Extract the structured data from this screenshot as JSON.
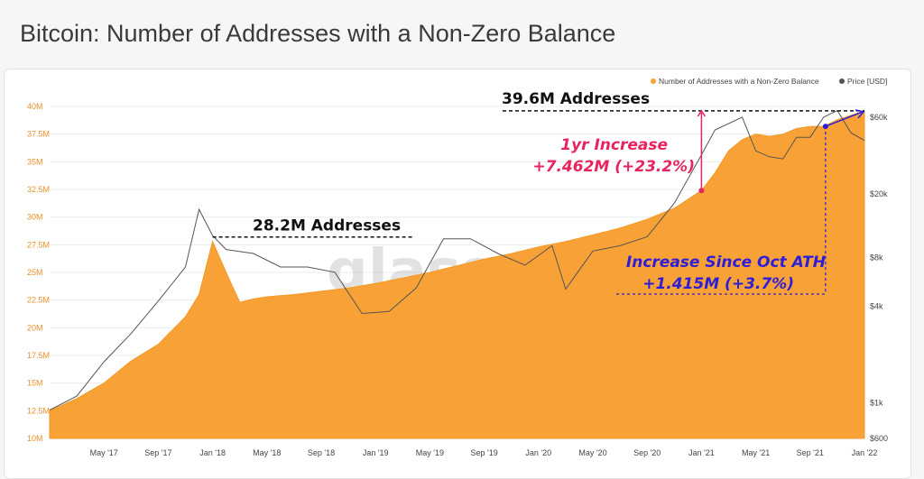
{
  "title": "Bitcoin: Number of Addresses with a Non-Zero Balance",
  "watermark": "glassnode",
  "colors": {
    "addresses": "#f7a136",
    "price": "#555555",
    "pink": "#e8245f",
    "blue": "#2d1ed8",
    "left_axis": "#e8902a"
  },
  "chart_data": {
    "type": "area",
    "legend": [
      {
        "name": "Number of Addresses with a Non-Zero Balance",
        "color": "#f7a136"
      },
      {
        "name": "Price [USD]",
        "color": "#555555"
      }
    ],
    "x_ticks": [
      "May '17",
      "Sep '17",
      "Jan '18",
      "May '18",
      "Sep '18",
      "Jan '19",
      "May '19",
      "Sep '19",
      "Jan '20",
      "May '20",
      "Sep '20",
      "Jan '21",
      "May '21",
      "Sep '21",
      "Jan '22"
    ],
    "y_left_ticks": [
      "10M",
      "12.5M",
      "15M",
      "17.5M",
      "20M",
      "22.5M",
      "25M",
      "27.5M",
      "30M",
      "32.5M",
      "35M",
      "37.5M",
      "40M"
    ],
    "y_left_range": [
      10,
      40
    ],
    "y_right_ticks": [
      "$600",
      "$1k",
      "$4k",
      "$8k",
      "$20k",
      "$60k"
    ],
    "y_right_scale": "log",
    "grid": true,
    "series": [
      {
        "name": "Number of Addresses with a Non-Zero Balance",
        "unit": "M",
        "x": [
          "2017-01",
          "2017-03",
          "2017-05",
          "2017-07",
          "2017-09",
          "2017-11",
          "2017-12",
          "2018-01",
          "2018-02",
          "2018-03",
          "2018-04",
          "2018-05",
          "2018-07",
          "2018-09",
          "2018-11",
          "2019-01",
          "2019-03",
          "2019-05",
          "2019-07",
          "2019-09",
          "2019-11",
          "2020-01",
          "2020-03",
          "2020-05",
          "2020-07",
          "2020-09",
          "2020-11",
          "2021-01",
          "2021-02",
          "2021-03",
          "2021-04",
          "2021-05",
          "2021-06",
          "2021-07",
          "2021-08",
          "2021-09",
          "2021-10",
          "2021-11",
          "2021-12",
          "2022-01"
        ],
        "values": [
          12.5,
          13.6,
          15.0,
          17.0,
          18.5,
          21.0,
          23.0,
          27.8,
          25.0,
          22.3,
          22.6,
          22.8,
          23.0,
          23.3,
          23.6,
          24.0,
          24.5,
          25.0,
          25.6,
          26.2,
          26.7,
          27.3,
          27.8,
          28.4,
          29.0,
          29.8,
          30.8,
          32.4,
          34.0,
          36.0,
          37.0,
          37.5,
          37.3,
          37.5,
          38.0,
          38.2,
          38.2,
          38.8,
          39.2,
          39.6
        ]
      },
      {
        "name": "Price [USD]",
        "unit": "USD",
        "x": [
          "2017-01",
          "2017-03",
          "2017-05",
          "2017-07",
          "2017-09",
          "2017-11",
          "2017-12",
          "2018-01",
          "2018-02",
          "2018-04",
          "2018-06",
          "2018-08",
          "2018-10",
          "2018-12",
          "2019-02",
          "2019-04",
          "2019-06",
          "2019-08",
          "2019-10",
          "2019-12",
          "2020-02",
          "2020-03",
          "2020-05",
          "2020-07",
          "2020-09",
          "2020-11",
          "2021-01",
          "2021-02",
          "2021-04",
          "2021-05",
          "2021-06",
          "2021-07",
          "2021-08",
          "2021-09",
          "2021-10",
          "2021-11",
          "2021-12",
          "2022-01"
        ],
        "values": [
          900,
          1100,
          1800,
          2700,
          4300,
          7000,
          16000,
          11000,
          9000,
          8500,
          7000,
          7000,
          6500,
          3600,
          3700,
          5200,
          10500,
          10500,
          8500,
          7200,
          9500,
          5100,
          8800,
          9500,
          10800,
          17500,
          35000,
          50000,
          60000,
          37000,
          34000,
          33000,
          45000,
          45000,
          60000,
          66000,
          48000,
          43000
        ]
      }
    ],
    "annotations": [
      {
        "text": "28.2M Addresses",
        "color": "black"
      },
      {
        "text": "39.6M Addresses",
        "color": "black"
      },
      {
        "line1": "1yr Increase",
        "line2": "+7.462M (+23.2%)",
        "color": "pink"
      },
      {
        "line1": "Increase Since Oct ATH",
        "line2": "+1.415M (+3.7%)",
        "color": "blue"
      }
    ]
  }
}
